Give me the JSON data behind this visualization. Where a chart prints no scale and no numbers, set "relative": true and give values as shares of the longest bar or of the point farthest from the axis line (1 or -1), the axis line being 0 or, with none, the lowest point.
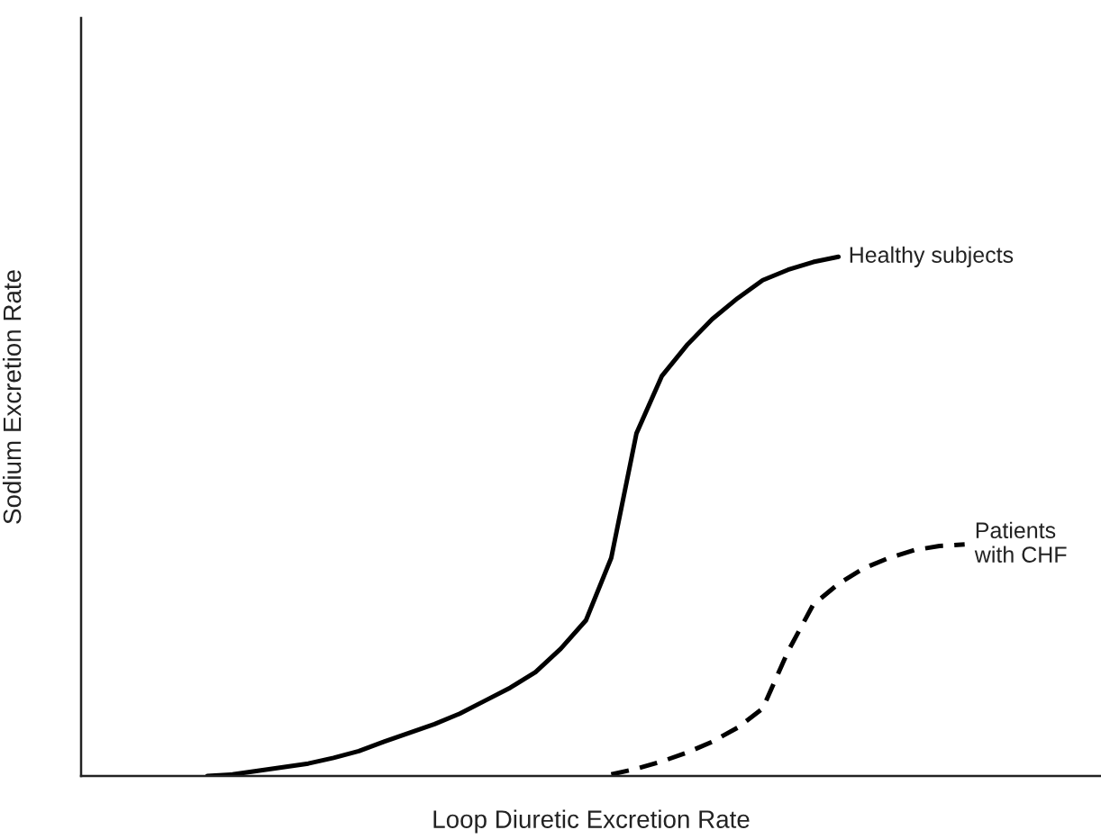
{
  "chart_data": {
    "type": "line",
    "relative": true,
    "xlabel": "Loop Diuretic Excretion Rate",
    "ylabel": "Sodium Excretion Rate",
    "grid": false,
    "legend": false,
    "marker": "none",
    "categories": [
      null,
      null,
      null,
      null,
      null,
      null,
      null,
      null,
      null,
      null,
      null,
      null,
      null,
      null,
      null,
      null,
      null,
      null,
      null,
      null,
      null,
      null,
      null,
      null,
      null,
      null,
      null,
      null,
      null,
      null,
      null,
      null,
      null,
      null,
      null,
      null,
      null,
      null,
      null,
      null,
      null
    ],
    "series": [
      {
        "name": "Healthy subjects",
        "color": "#000000",
        "line_style": "solid",
        "values": [
          null,
          null,
          null,
          null,
          null,
          0,
          0.003,
          0.01,
          0.017,
          0.024,
          0.035,
          0.048,
          0.066,
          0.083,
          0.1,
          0.12,
          0.145,
          0.17,
          0.2,
          0.245,
          0.3,
          0.42,
          0.66,
          0.77,
          0.83,
          0.88,
          0.92,
          0.955,
          0.975,
          0.99,
          1.0,
          null,
          null,
          null,
          null,
          null,
          null,
          null,
          null,
          null,
          null
        ]
      },
      {
        "name": "Patients\nwith CHF",
        "color": "#000000",
        "line_style": "dashed",
        "values": [
          null,
          null,
          null,
          null,
          null,
          null,
          null,
          null,
          null,
          null,
          null,
          null,
          null,
          null,
          null,
          null,
          null,
          null,
          null,
          null,
          null,
          0.003,
          0.014,
          0.028,
          0.045,
          0.066,
          0.093,
          0.13,
          0.24,
          0.33,
          0.37,
          0.4,
          0.42,
          0.435,
          0.443,
          0.446,
          null,
          null,
          null,
          null,
          null
        ]
      }
    ]
  }
}
